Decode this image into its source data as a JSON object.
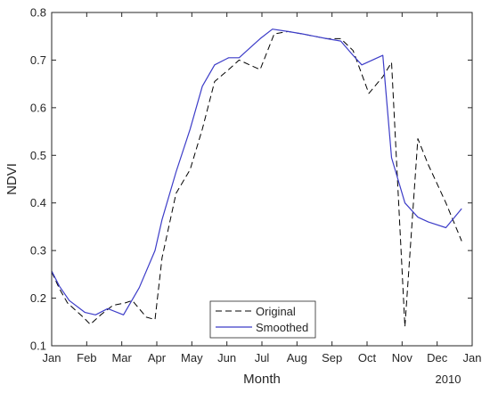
{
  "chart_data": {
    "type": "line",
    "title": "",
    "xlabel": "Month",
    "ylabel": "NDVI",
    "x_year_label": "2010",
    "x_ticks": [
      "Jan",
      "Feb",
      "Mar",
      "Apr",
      "May",
      "Jun",
      "Jul",
      "Aug",
      "Sep",
      "Oct",
      "Nov",
      "Dec",
      "Jan"
    ],
    "y_ticks": [
      "0.1",
      "0.2",
      "0.3",
      "0.4",
      "0.5",
      "0.6",
      "0.7",
      "0.8"
    ],
    "xlim": [
      0,
      12
    ],
    "ylim": [
      0.1,
      0.8
    ],
    "grid": false,
    "box": true,
    "legend_position": "bottom-center",
    "series": [
      {
        "name": "Original",
        "style": "dashed",
        "color": "#000000",
        "x": [
          0,
          0.22,
          0.45,
          0.9,
          1.1,
          1.4,
          1.75,
          2.1,
          2.3,
          2.7,
          2.95,
          3.15,
          3.55,
          3.95,
          4.3,
          4.65,
          5.05,
          5.35,
          5.65,
          5.95,
          6.35,
          6.75,
          7.15,
          7.5,
          7.85,
          8.25,
          8.6,
          9.05,
          9.45,
          9.7,
          10.08,
          10.45,
          10.75,
          11.25,
          11.7
        ],
        "values": [
          0.255,
          0.22,
          0.19,
          0.16,
          0.145,
          0.165,
          0.185,
          0.19,
          0.195,
          0.16,
          0.155,
          0.285,
          0.42,
          0.47,
          0.555,
          0.655,
          0.68,
          0.7,
          0.69,
          0.68,
          0.755,
          0.76,
          0.755,
          0.75,
          0.745,
          0.745,
          0.72,
          0.63,
          0.665,
          0.695,
          0.14,
          0.535,
          0.48,
          0.4,
          0.32
        ]
      },
      {
        "name": "Smoothed",
        "style": "solid",
        "color": "#3c3cc8",
        "x": [
          0,
          0.22,
          0.5,
          0.95,
          1.25,
          1.6,
          2.05,
          2.5,
          2.95,
          3.15,
          3.55,
          3.95,
          4.3,
          4.65,
          5.05,
          5.35,
          5.65,
          5.95,
          6.3,
          6.75,
          7.15,
          7.5,
          7.85,
          8.25,
          8.6,
          8.85,
          9.15,
          9.45,
          9.7,
          10.08,
          10.45,
          10.75,
          11.25,
          11.7
        ],
        "values": [
          0.257,
          0.225,
          0.195,
          0.17,
          0.165,
          0.178,
          0.165,
          0.222,
          0.3,
          0.365,
          0.465,
          0.555,
          0.645,
          0.69,
          0.705,
          0.705,
          0.725,
          0.745,
          0.765,
          0.76,
          0.755,
          0.75,
          0.745,
          0.74,
          0.71,
          0.69,
          0.7,
          0.71,
          0.495,
          0.4,
          0.37,
          0.36,
          0.348,
          0.388
        ]
      }
    ]
  }
}
